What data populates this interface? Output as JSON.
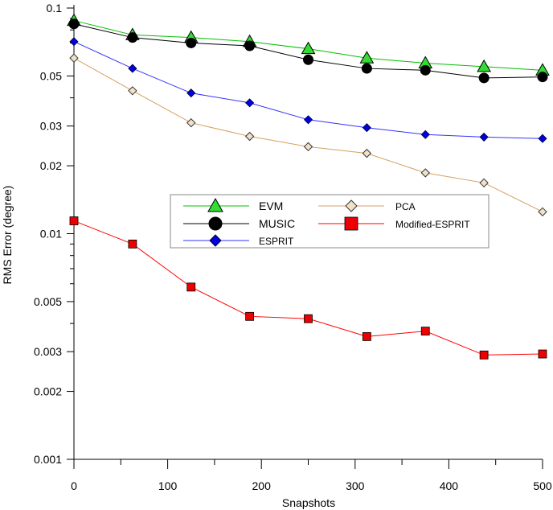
{
  "chart_data": {
    "type": "line",
    "title": "",
    "xlabel": "Snapshots",
    "ylabel": "RMS Error (degree)",
    "xlim": [
      0,
      500
    ],
    "ylim": [
      0.001,
      0.1
    ],
    "yscale": "log",
    "x_ticks": [
      0,
      100,
      200,
      300,
      400,
      500
    ],
    "x_tick_labels": [
      "0",
      "100",
      "200",
      "300",
      "400",
      "500"
    ],
    "y_ticks": [
      0.001,
      0.002,
      0.003,
      0.005,
      0.01,
      0.02,
      0.03,
      0.05,
      0.1
    ],
    "y_tick_labels": [
      "0.001",
      "0.002",
      "0.003",
      "0.005",
      "0.01",
      "0.02",
      "0.03",
      "0.05",
      "0.1"
    ],
    "grid": false,
    "legend_position": "center-upper",
    "x": [
      0,
      62.5,
      125,
      187.5,
      250,
      312.5,
      375,
      437.5,
      500
    ],
    "series": [
      {
        "name": "EVM",
        "color": "#00c000",
        "marker": "triangle",
        "marker_fill": "#33dd33",
        "values": [
          0.088,
          0.076,
          0.074,
          0.071,
          0.066,
          0.06,
          0.057,
          0.055,
          0.053
        ]
      },
      {
        "name": "MUSIC",
        "color": "#000000",
        "marker": "circle",
        "marker_fill": "#000000",
        "values": [
          0.085,
          0.074,
          0.07,
          0.068,
          0.059,
          0.054,
          0.053,
          0.049,
          0.0495
        ]
      },
      {
        "name": "ESPRIT",
        "color": "#3333ff",
        "marker": "diamond",
        "marker_fill": "#0000dd",
        "values": [
          0.071,
          0.054,
          0.042,
          0.038,
          0.032,
          0.0295,
          0.0275,
          0.0268,
          0.0264
        ]
      },
      {
        "name": "PCA",
        "color": "#d4a060",
        "marker": "diamond-open",
        "marker_fill": "#f2e0c8",
        "values": [
          0.06,
          0.043,
          0.031,
          0.027,
          0.0243,
          0.0227,
          0.0186,
          0.0168,
          0.0125
        ]
      },
      {
        "name": "Modified-ESPRIT",
        "color": "#ff0000",
        "marker": "square",
        "marker_fill": "#ee0000",
        "values": [
          0.0114,
          0.009,
          0.0058,
          0.0043,
          0.0042,
          0.0035,
          0.0037,
          0.0029,
          0.00293
        ]
      }
    ]
  }
}
